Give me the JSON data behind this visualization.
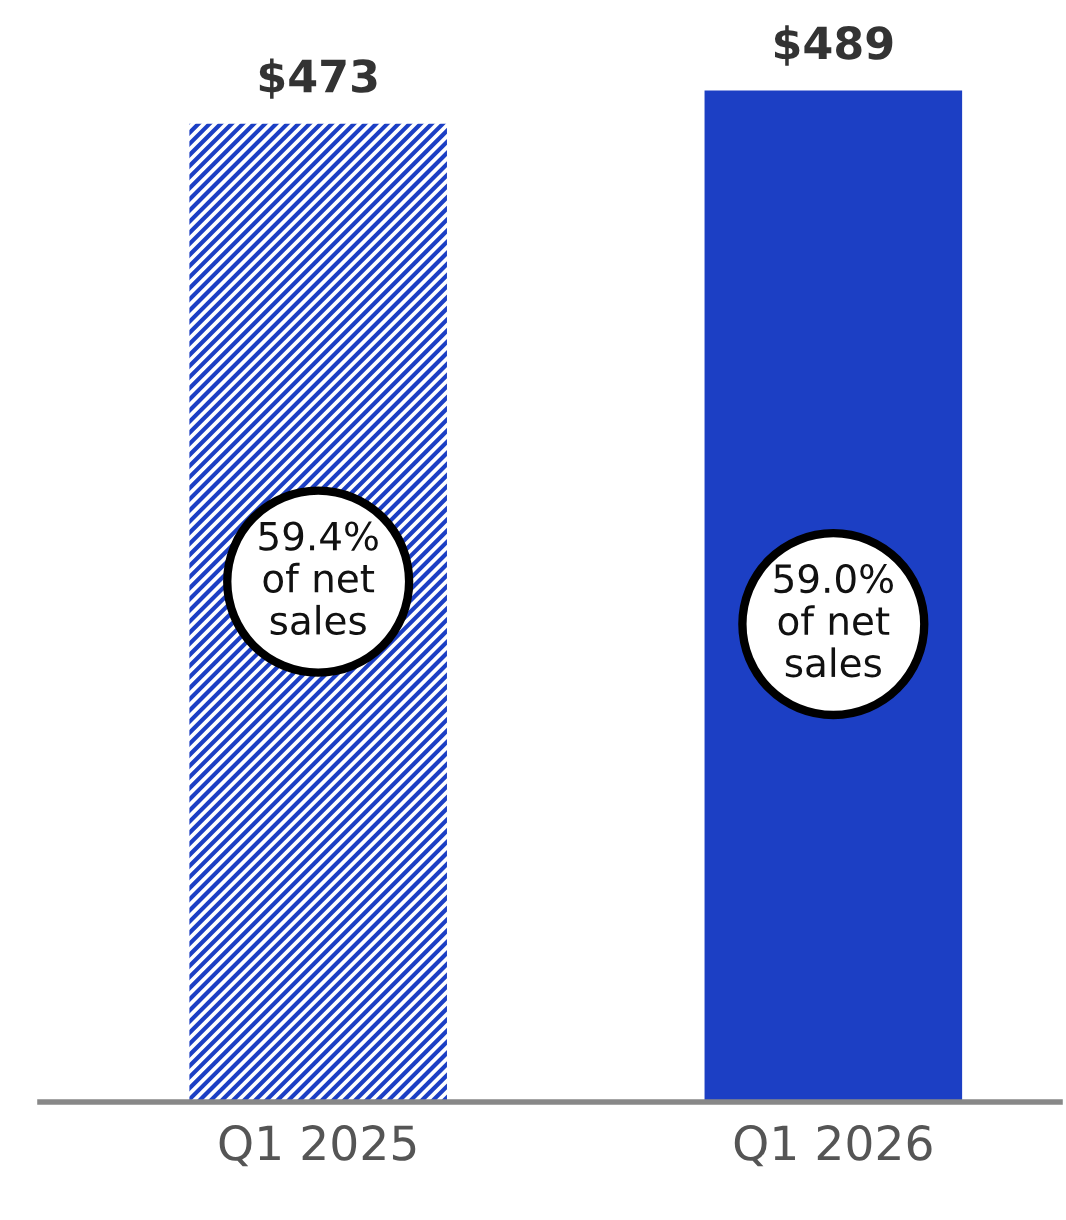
{
  "chart_data": {
    "type": "bar",
    "categories": [
      "Q1 2025",
      "Q1 2026"
    ],
    "values": [
      473,
      489
    ],
    "colors": [
      "#1c3fc4",
      "#1c3fc4"
    ],
    "value_labels": [
      "$473",
      "$489"
    ],
    "tick_labels": "x",
    "annotations": [
      "59.4%\nof net\nsales",
      "59.0%\nof net\nsales"
    ]
  }
}
